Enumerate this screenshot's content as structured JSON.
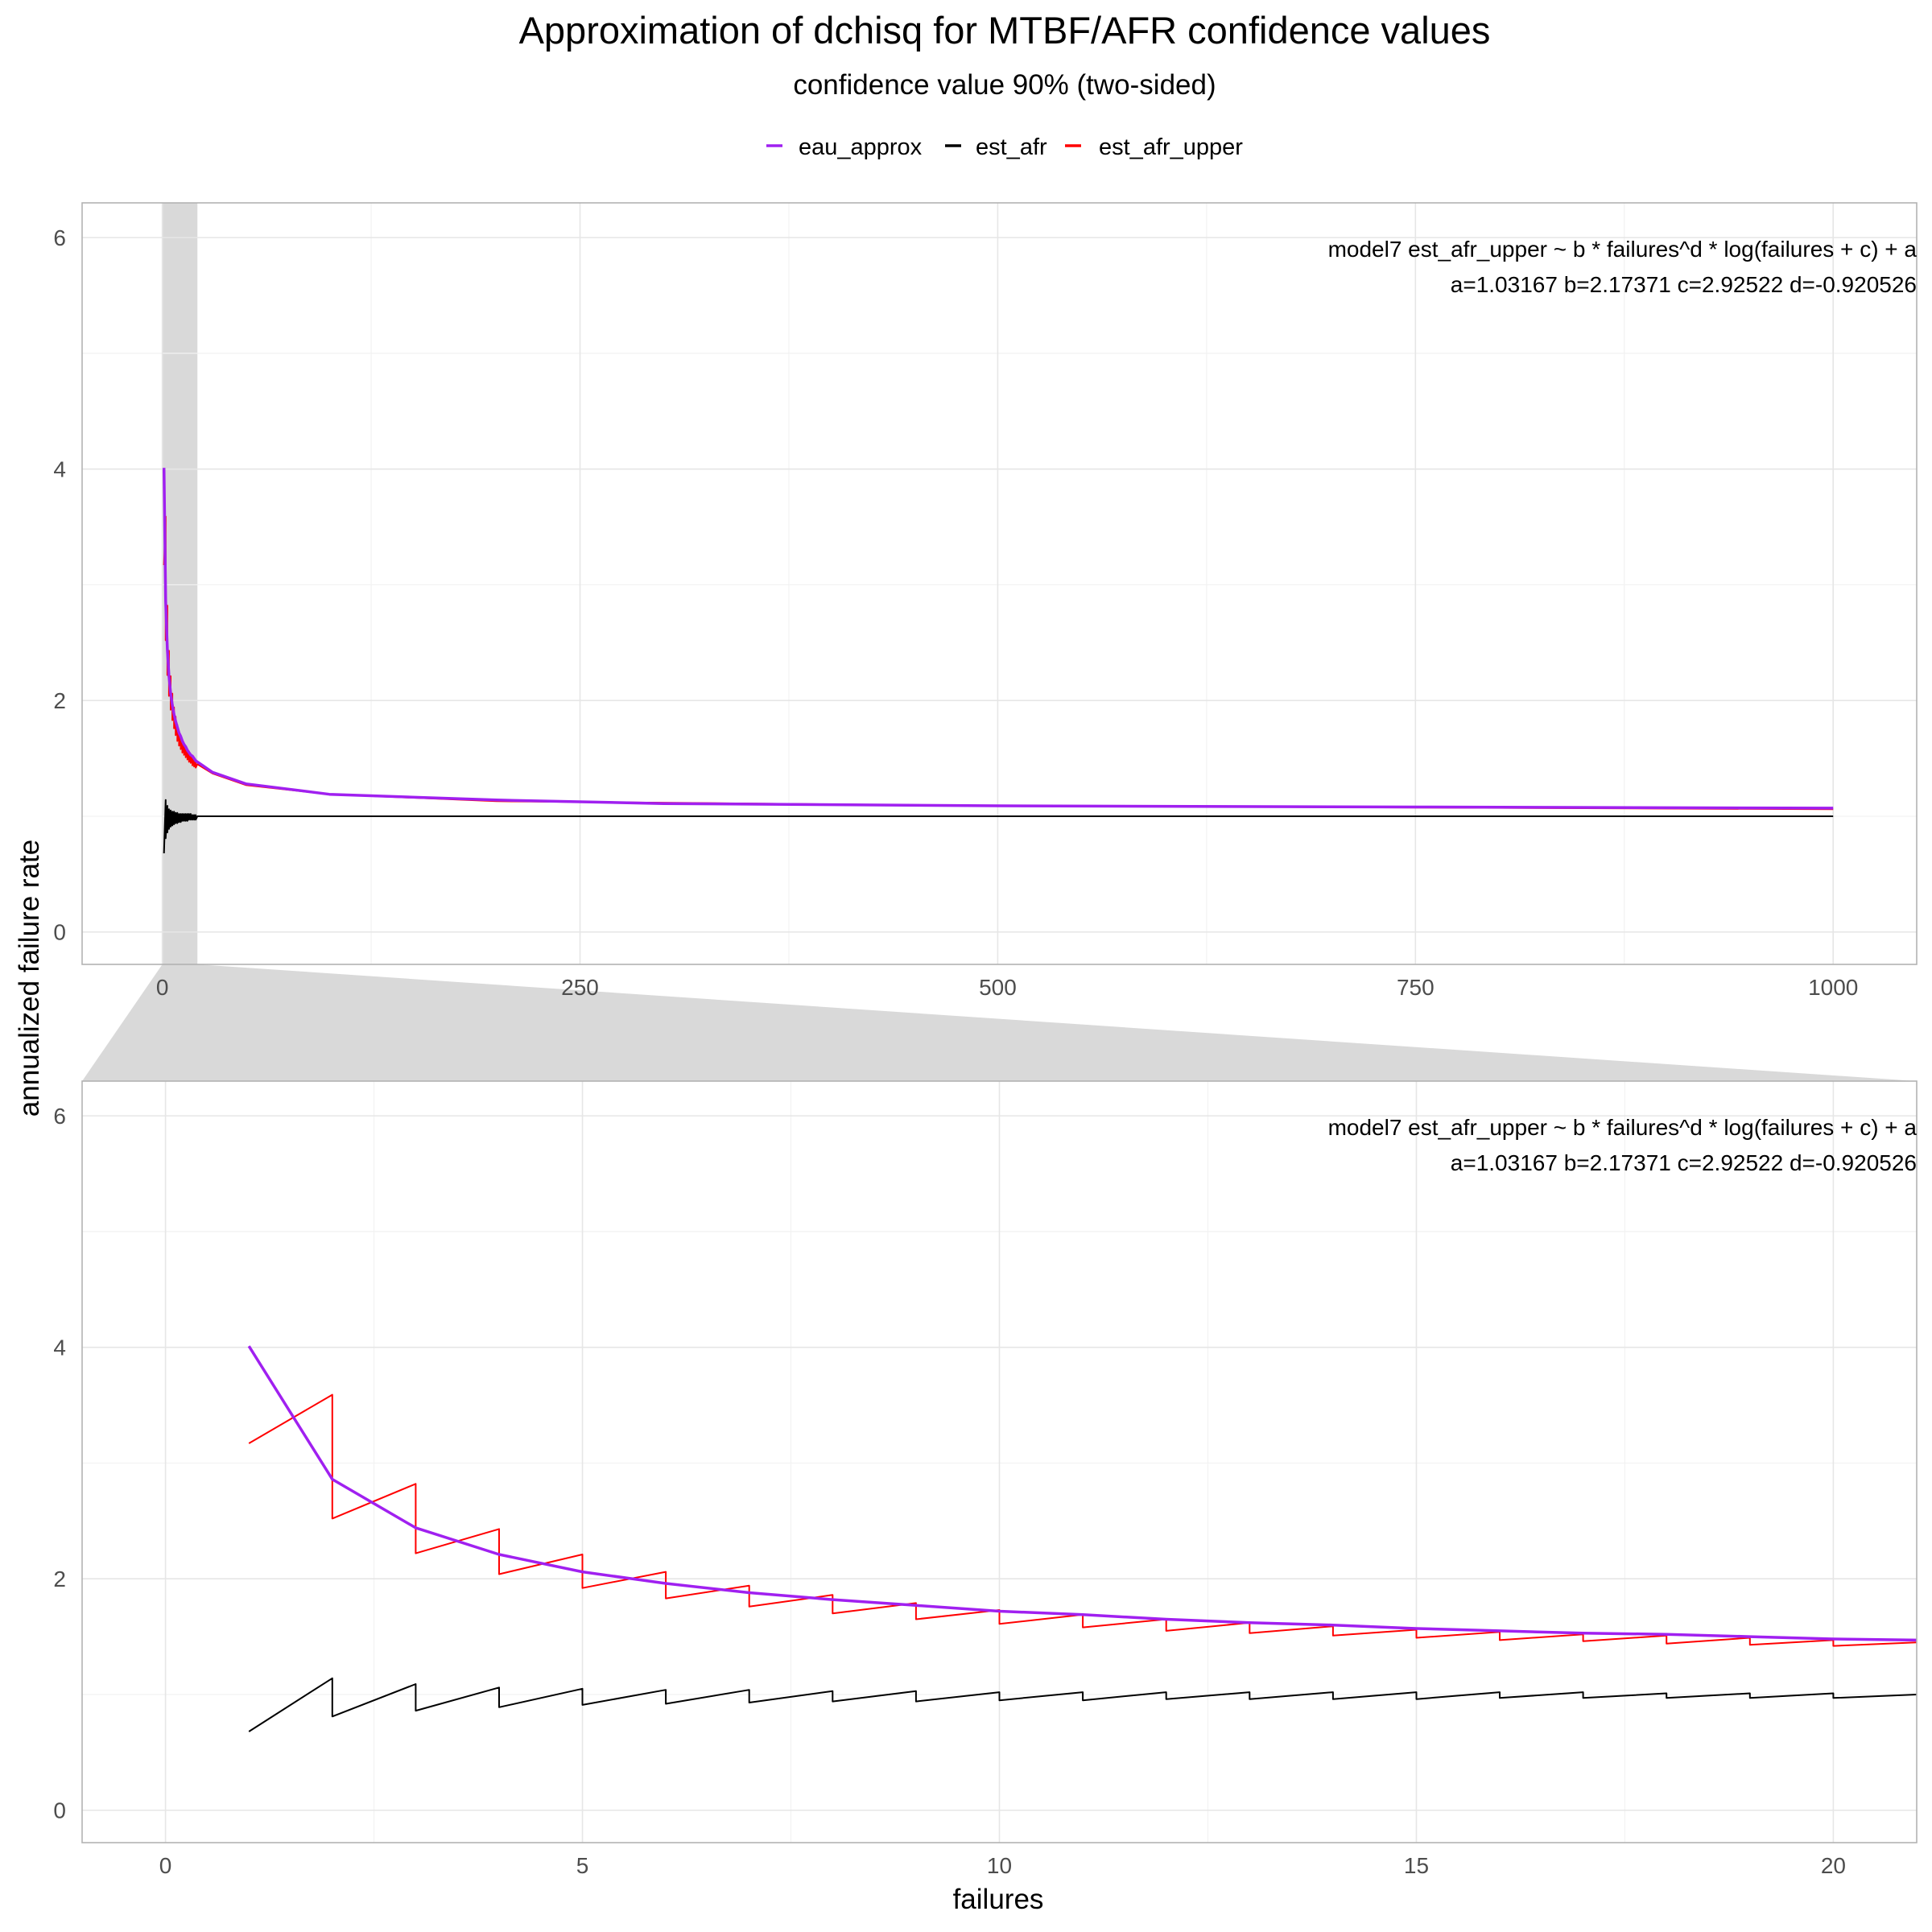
{
  "chart_data": {
    "type": "line",
    "title": "Approximation of dchisq for MTBF/AFR confidence values",
    "subtitle": "confidence value 90% (two-sided)",
    "xlabel": "failures",
    "ylabel": "annualized failure rate",
    "legend": {
      "position": "top",
      "entries": [
        {
          "name": "eau_approx",
          "color": "#A020F0"
        },
        {
          "name": "est_afr",
          "color": "#000000"
        },
        {
          "name": "est_afr_upper",
          "color": "#FF0000"
        }
      ]
    },
    "grid": true,
    "facet_zoom": {
      "highlight_xlim": [
        0,
        21
      ],
      "highlight_fill": "#D9D9D9"
    },
    "annotation": {
      "line1": "model7 est_afr_upper ~ b * failures^d * log(failures + c) + a",
      "line2": "a=1.03167 b=2.17371 c=2.92522 d=-0.920526"
    },
    "model": {
      "a": 1.03167,
      "b": 2.17371,
      "c": 2.92522,
      "d": -0.920526
    },
    "panels": [
      {
        "name": "overview",
        "xlim": [
          -48,
          1050
        ],
        "ylim": [
          -0.28,
          6.3
        ],
        "xticks": [
          0,
          250,
          500,
          750,
          1000
        ],
        "yticks": [
          0,
          2,
          4,
          6
        ],
        "xminor": [
          125,
          375,
          625,
          875
        ],
        "yminor": [
          1,
          3,
          5
        ]
      },
      {
        "name": "zoom",
        "xlim": [
          -1,
          21
        ],
        "ylim": [
          -0.28,
          6.3
        ],
        "xticks": [
          0,
          5,
          10,
          15,
          20
        ],
        "yticks": [
          0,
          2,
          4,
          6
        ],
        "xminor": [
          2.5,
          7.5,
          12.5,
          17.5
        ],
        "yminor": [
          1,
          3,
          5
        ]
      }
    ],
    "series": [
      {
        "name": "eau_approx",
        "color": "#A020F0",
        "x": [
          1,
          2,
          3,
          4,
          5,
          6,
          7,
          8,
          9,
          10,
          11,
          12,
          13,
          14,
          15,
          16,
          17,
          18,
          19,
          20,
          21,
          30,
          50,
          100,
          200,
          300,
          500,
          750,
          1000
        ],
        "y": [
          4.01,
          2.86,
          2.44,
          2.21,
          2.06,
          1.96,
          1.88,
          1.82,
          1.77,
          1.72,
          1.69,
          1.65,
          1.62,
          1.6,
          1.57,
          1.55,
          1.53,
          1.52,
          1.5,
          1.48,
          1.47,
          1.38,
          1.28,
          1.19,
          1.14,
          1.11,
          1.09,
          1.08,
          1.07
        ]
      },
      {
        "name": "est_afr",
        "color": "#000000",
        "x": [
          1,
          2,
          2,
          3,
          3,
          4,
          4,
          5,
          5,
          6,
          6,
          7,
          7,
          8,
          8,
          9,
          9,
          10,
          10,
          11,
          11,
          12,
          12,
          13,
          13,
          14,
          14,
          15,
          15,
          16,
          16,
          17,
          17,
          18,
          18,
          19,
          19,
          20,
          20,
          21,
          30,
          50,
          100,
          200,
          500,
          1000
        ],
        "y": [
          0.68,
          1.14,
          0.81,
          1.09,
          0.86,
          1.06,
          0.89,
          1.05,
          0.91,
          1.04,
          0.92,
          1.04,
          0.93,
          1.03,
          0.94,
          1.03,
          0.94,
          1.02,
          0.95,
          1.02,
          0.95,
          1.02,
          0.96,
          1.02,
          0.96,
          1.02,
          0.96,
          1.02,
          0.96,
          1.02,
          0.97,
          1.02,
          0.97,
          1.01,
          0.97,
          1.01,
          0.97,
          1.01,
          0.97,
          1.0,
          1.0,
          1.0,
          1.0,
          1.0,
          1.0,
          1.0
        ]
      },
      {
        "name": "est_afr_upper",
        "color": "#FF0000",
        "x": [
          1,
          2,
          2,
          3,
          3,
          4,
          4,
          5,
          5,
          6,
          6,
          7,
          7,
          8,
          8,
          9,
          9,
          10,
          10,
          11,
          11,
          12,
          12,
          13,
          13,
          14,
          14,
          15,
          15,
          16,
          16,
          17,
          17,
          18,
          18,
          19,
          19,
          20,
          20,
          21,
          30,
          50,
          100,
          200,
          500,
          1000
        ],
        "y": [
          3.17,
          3.59,
          2.52,
          2.82,
          2.22,
          2.43,
          2.04,
          2.21,
          1.92,
          2.06,
          1.83,
          1.94,
          1.76,
          1.86,
          1.7,
          1.79,
          1.65,
          1.73,
          1.61,
          1.69,
          1.58,
          1.65,
          1.55,
          1.62,
          1.53,
          1.59,
          1.51,
          1.56,
          1.49,
          1.54,
          1.47,
          1.52,
          1.46,
          1.51,
          1.44,
          1.49,
          1.43,
          1.47,
          1.42,
          1.45,
          1.37,
          1.27,
          1.19,
          1.13,
          1.09,
          1.06
        ]
      }
    ]
  }
}
